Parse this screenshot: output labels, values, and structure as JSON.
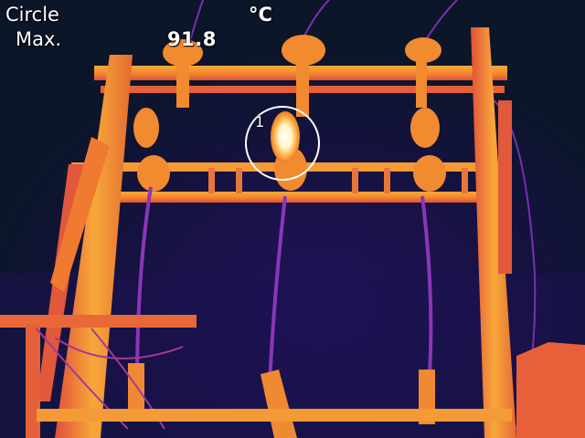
{
  "overlay": {
    "measure_mode": "Circle",
    "measure_stat": "Max.",
    "unit": "°C",
    "max_temperature": "91.8",
    "spot_label": "1"
  },
  "palette": {
    "background": "#0b1629",
    "cold": "#2a1a6e",
    "cool": "#6a2aa8",
    "mid": "#e0503a",
    "warm": "#f07a2a",
    "hot": "#f8a83a",
    "hottest": "#ffffff",
    "marker": "#ffffff"
  },
  "scene": "thermal-image-power-pole-structure"
}
